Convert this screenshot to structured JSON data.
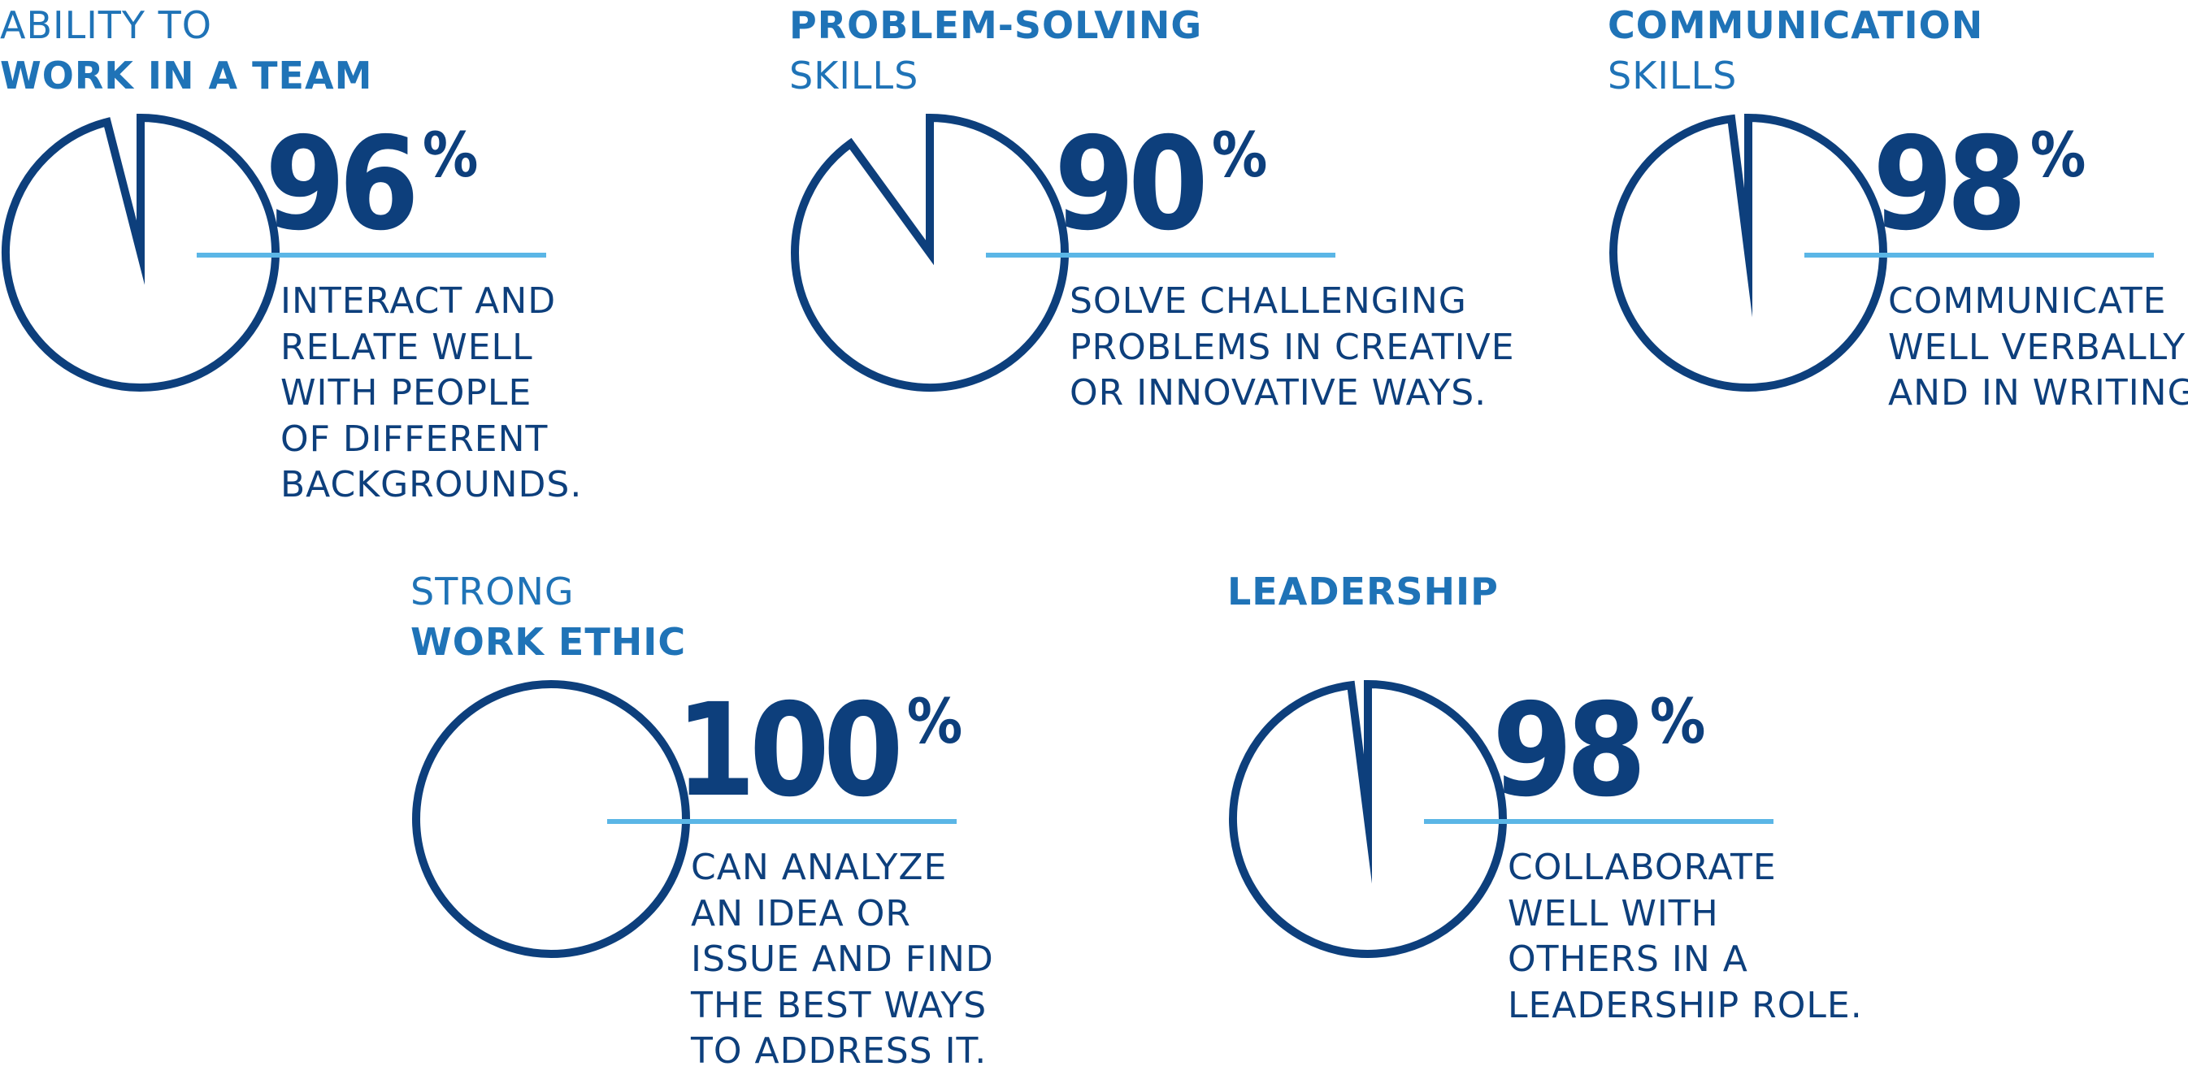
{
  "colors": {
    "title": "#1F73B7",
    "pie": "#0D3F7C",
    "rule": "#5BB6E6",
    "text": "#0D3F7C"
  },
  "chart_data": [
    {
      "type": "pie",
      "title_lines": [
        "ABILITY TO",
        "WORK IN A TEAM"
      ],
      "title_bold": [
        false,
        true
      ],
      "value": 96,
      "value_label": "96",
      "unit": "%",
      "description_lines": [
        "INTERACT AND",
        "RELATE WELL",
        "WITH PEOPLE",
        "OF DIFFERENT",
        "BACKGROUNDS."
      ]
    },
    {
      "type": "pie",
      "title_lines": [
        "PROBLEM-SOLVING",
        "SKILLS"
      ],
      "title_bold": [
        true,
        false
      ],
      "value": 90,
      "value_label": "90",
      "unit": "%",
      "description_lines": [
        "SOLVE CHALLENGING",
        "PROBLEMS IN CREATIVE",
        "OR INNOVATIVE WAYS."
      ]
    },
    {
      "type": "pie",
      "title_lines": [
        "COMMUNICATION",
        "SKILLS"
      ],
      "title_bold": [
        true,
        false
      ],
      "value": 98,
      "value_label": "98",
      "unit": "%",
      "description_lines": [
        "COMMUNICATE",
        "WELL VERBALLY",
        "AND IN WRITING."
      ]
    },
    {
      "type": "pie",
      "title_lines": [
        "STRONG",
        "WORK ETHIC"
      ],
      "title_bold": [
        false,
        true
      ],
      "value": 100,
      "value_label": "100",
      "unit": "%",
      "description_lines": [
        "CAN ANALYZE",
        "AN IDEA OR",
        "ISSUE AND FIND",
        "THE BEST WAYS",
        "TO ADDRESS IT."
      ]
    },
    {
      "type": "pie",
      "title_lines": [
        "",
        "LEADERSHIP"
      ],
      "title_bold": [
        false,
        true
      ],
      "value": 98,
      "value_label": "98",
      "unit": "%",
      "description_lines": [
        "COLLABORATE",
        "WELL WITH",
        "OTHERS IN A",
        "LEADERSHIP ROLE."
      ]
    }
  ]
}
